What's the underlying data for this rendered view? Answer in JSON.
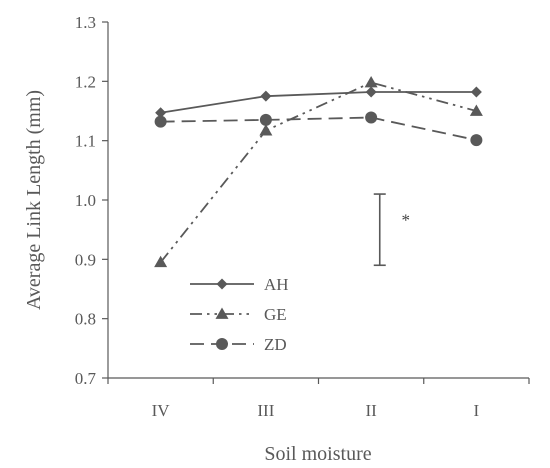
{
  "chart_data": {
    "type": "line",
    "xlabel": "Soil moisture",
    "ylabel": "Average Link Length (mm)",
    "categories": [
      "IV",
      "III",
      "II",
      "I"
    ],
    "ylim": [
      0.7,
      1.3
    ],
    "yticks": [
      "0.7",
      "0.8",
      "0.9",
      "1.0",
      "1.1",
      "1.2",
      "1.3"
    ],
    "grid": false,
    "legend": "bottom-left",
    "series": [
      {
        "name": "AH",
        "values": [
          1.147,
          1.175,
          1.182,
          1.182
        ],
        "marker": "diamond",
        "dash": "solid",
        "color": "#595959"
      },
      {
        "name": "GE",
        "values": [
          0.895,
          1.117,
          1.198,
          1.15
        ],
        "marker": "triangle",
        "dash": "dash-dot-dot",
        "color": "#595959"
      },
      {
        "name": "ZD",
        "values": [
          1.132,
          1.135,
          1.139,
          1.101
        ],
        "marker": "circle",
        "dash": "dash",
        "color": "#595959"
      }
    ],
    "error_bar": {
      "low": 0.89,
      "high": 1.01,
      "label": "*",
      "position": "between II and I"
    }
  }
}
